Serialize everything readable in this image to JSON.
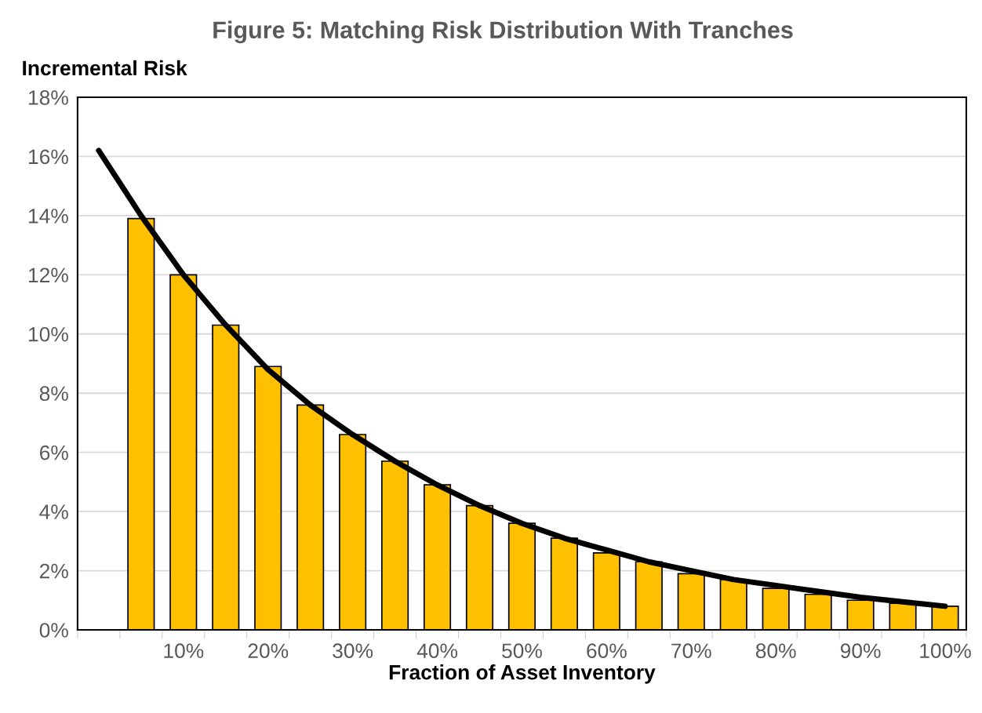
{
  "chart_data": {
    "type": "bar",
    "title": "Figure 5: Matching Risk Distribution With Tranches",
    "xlabel": "Fraction of Asset Inventory",
    "ylabel": "Incremental Risk",
    "categories": [
      null,
      null,
      "10%",
      null,
      "20%",
      null,
      "30%",
      null,
      "40%",
      null,
      "50%",
      null,
      "60%",
      null,
      "70%",
      null,
      "80%",
      null,
      "90%",
      null,
      "100%"
    ],
    "series": [
      {
        "color": "#ffc000",
        "values": [
          null,
          13.9,
          12.0,
          10.3,
          8.9,
          7.6,
          6.6,
          5.7,
          4.9,
          4.2,
          3.6,
          3.1,
          2.6,
          2.3,
          1.9,
          1.7,
          1.4,
          1.2,
          1.0,
          0.9,
          0.8
        ]
      },
      {
        "type": "line",
        "color": "#000000",
        "values": [
          16.2,
          14.0,
          12.0,
          10.3,
          8.8,
          7.6,
          6.6,
          5.7,
          4.9,
          4.2,
          3.6,
          3.1,
          2.7,
          2.3,
          2.0,
          1.7,
          1.5,
          1.3,
          1.1,
          0.95,
          0.8
        ]
      }
    ],
    "ylim": [
      0,
      18
    ],
    "yticks": [
      {
        "value": 0,
        "label": "0%"
      },
      {
        "value": 2,
        "label": "2%"
      },
      {
        "value": 4,
        "label": "4%"
      },
      {
        "value": 6,
        "label": "6%"
      },
      {
        "value": 8,
        "label": "8%"
      },
      {
        "value": 10,
        "label": "10%"
      },
      {
        "value": 12,
        "label": "12%"
      },
      {
        "value": 14,
        "label": "14%"
      },
      {
        "value": 16,
        "label": "16%"
      },
      {
        "value": 18,
        "label": "18%"
      }
    ],
    "grid": "y"
  }
}
